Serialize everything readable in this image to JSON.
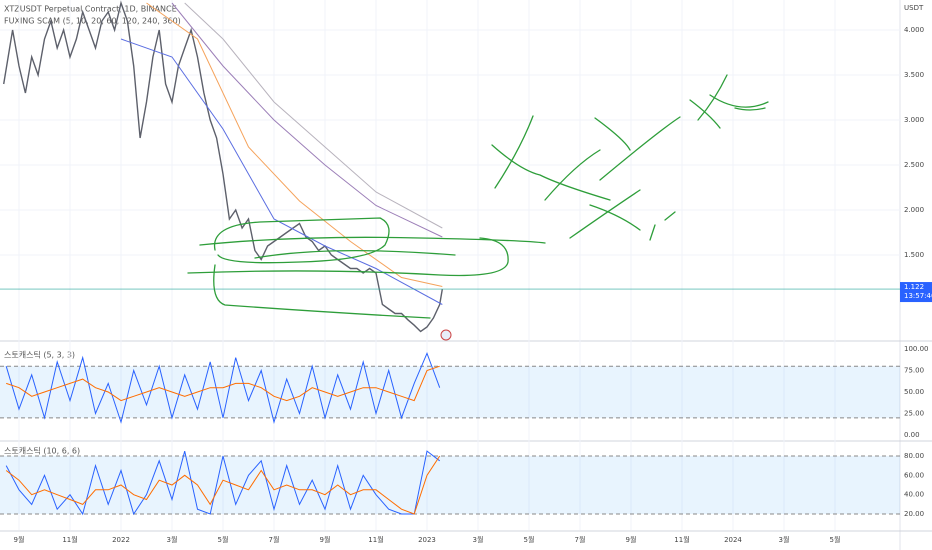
{
  "chart_data": [
    {
      "type": "line",
      "title": "XTZUSDT Perpetual Contract, 1D, BINANCE",
      "subtitle": "FUXING SCAM (5, 10, 20, 60, 120, 240, 360)",
      "y_unit": "USDT",
      "x": [
        -0.6,
        -0.25,
        0,
        0.25,
        0.5,
        0.75,
        1,
        1.25,
        1.5,
        1.75,
        2,
        2.25,
        2.5,
        2.75,
        3,
        3.25,
        3.5,
        3.75,
        4,
        4.25,
        4.5,
        4.75,
        5,
        5.25,
        5.5,
        5.75,
        6,
        6.25,
        6.5,
        6.75,
        7,
        7.25,
        7.5,
        7.75,
        8,
        8.25,
        8.5,
        8.75,
        9,
        9.25,
        9.5,
        9.75,
        10,
        10.25,
        10.5,
        10.75,
        11,
        11.25,
        11.5,
        11.75,
        12,
        12.25,
        12.5,
        12.75,
        13,
        13.25,
        13.5,
        13.75,
        14,
        14.25,
        14.5,
        14.75,
        15,
        15.25,
        15.5,
        15.75,
        16,
        16.25,
        16.5,
        16.6
      ],
      "series": [
        {
          "color": "#5d606b",
          "values": [
            3.4,
            4.0,
            3.6,
            3.3,
            3.7,
            3.5,
            3.9,
            4.1,
            3.8,
            4.0,
            3.7,
            3.9,
            4.2,
            4.0,
            3.8,
            4.1,
            4.2,
            4.0,
            4.3,
            4.1,
            3.6,
            2.8,
            3.2,
            3.7,
            4.0,
            3.4,
            3.2,
            3.6,
            3.8,
            4.0,
            3.7,
            3.3,
            3.0,
            2.8,
            2.4,
            1.9,
            2.0,
            1.8,
            1.9,
            1.55,
            1.45,
            1.6,
            1.65,
            1.7,
            1.75,
            1.8,
            1.85,
            1.7,
            1.65,
            1.55,
            1.6,
            1.5,
            1.45,
            1.4,
            1.35,
            1.35,
            1.3,
            1.35,
            1.3,
            0.95,
            0.9,
            0.85,
            0.85,
            0.78,
            0.72,
            0.65,
            0.7,
            0.8,
            0.95,
            1.12
          ]
        },
        {
          "color": "#5b6ee1",
          "x": [
            4,
            6,
            8,
            10,
            12,
            14,
            16.6
          ],
          "values": [
            3.9,
            3.7,
            2.9,
            1.9,
            1.6,
            1.35,
            0.95
          ]
        },
        {
          "color": "#f5a35c",
          "x": [
            5,
            7,
            9,
            11,
            13,
            15,
            16.6
          ],
          "values": [
            4.3,
            3.9,
            2.7,
            2.1,
            1.65,
            1.25,
            1.15
          ]
        },
        {
          "color": "#9c7fb8",
          "x": [
            6,
            8,
            10,
            12,
            14,
            16.6
          ],
          "values": [
            4.3,
            3.6,
            3.0,
            2.5,
            2.05,
            1.7
          ]
        },
        {
          "color": "#b8b3bd",
          "x": [
            6.5,
            8,
            10,
            12,
            14,
            16.6
          ],
          "values": [
            4.3,
            3.9,
            3.2,
            2.7,
            2.2,
            1.8
          ]
        }
      ],
      "ylim": [
        0.556,
        4.333
      ],
      "yticks": [
        {
          "value": 1.5,
          "label": "1.500"
        },
        {
          "value": 2,
          "label": "2.000"
        },
        {
          "value": 2.5,
          "label": "2.500"
        },
        {
          "value": 3,
          "label": "3.000"
        },
        {
          "value": 3.5,
          "label": "3.500"
        },
        {
          "value": 4,
          "label": "4.000"
        }
      ],
      "xlim": [
        -0.745,
        34.55
      ],
      "xticks": [
        {
          "value": 0,
          "label": "9월"
        },
        {
          "value": 2,
          "label": "11월"
        },
        {
          "value": 4,
          "label": "2022"
        },
        {
          "value": 6,
          "label": "3월"
        },
        {
          "value": 8,
          "label": "5월"
        },
        {
          "value": 10,
          "label": "7월"
        },
        {
          "value": 12,
          "label": "9월"
        },
        {
          "value": 14,
          "label": "11월"
        },
        {
          "value": 16,
          "label": "2023"
        },
        {
          "value": 18,
          "label": "3월"
        },
        {
          "value": 20,
          "label": "5월"
        },
        {
          "value": 22,
          "label": "7월"
        },
        {
          "value": 24,
          "label": "9월"
        },
        {
          "value": 26,
          "label": "11월"
        },
        {
          "value": 28,
          "label": "2024"
        },
        {
          "value": 30,
          "label": "3월"
        },
        {
          "value": 32,
          "label": "5월"
        }
      ],
      "last_price": {
        "value": 1.122,
        "label": "1.122"
      },
      "last_time": "13:57:46"
    },
    {
      "type": "line",
      "title": "스토캐스틱 (5, 3, 3)",
      "x": [
        -0.5,
        0,
        0.5,
        1,
        1.5,
        2,
        2.5,
        3,
        3.5,
        4,
        4.5,
        5,
        5.5,
        6,
        6.5,
        7,
        7.5,
        8,
        8.5,
        9,
        9.5,
        10,
        10.5,
        11,
        11.5,
        12,
        12.5,
        13,
        13.5,
        14,
        14.5,
        15,
        15.5,
        16,
        16.5
      ],
      "series": [
        {
          "color": "#2962ff",
          "values": [
            80,
            30,
            70,
            20,
            85,
            40,
            90,
            25,
            60,
            15,
            75,
            35,
            80,
            20,
            70,
            30,
            85,
            20,
            90,
            40,
            75,
            15,
            65,
            25,
            80,
            20,
            70,
            30,
            85,
            25,
            75,
            20,
            60,
            95,
            55
          ]
        },
        {
          "color": "#ff6d00",
          "values": [
            60,
            55,
            45,
            50,
            55,
            60,
            65,
            55,
            50,
            40,
            45,
            50,
            55,
            50,
            45,
            50,
            55,
            55,
            60,
            60,
            55,
            45,
            40,
            45,
            55,
            50,
            45,
            50,
            55,
            55,
            50,
            45,
            40,
            75,
            80
          ]
        }
      ],
      "band": [
        20,
        80
      ],
      "ylim": [
        -5.8,
        107
      ],
      "yticks": [
        {
          "value": 0,
          "label": "0.00"
        },
        {
          "value": 25,
          "label": "25.00"
        },
        {
          "value": 50,
          "label": "50.00"
        },
        {
          "value": 75,
          "label": "75.00"
        },
        {
          "value": 100,
          "label": "100.00"
        }
      ]
    },
    {
      "type": "line",
      "title": "스토캐스틱 (10, 6, 6)",
      "x": [
        -0.5,
        0,
        0.5,
        1,
        1.5,
        2,
        2.5,
        3,
        3.5,
        4,
        4.5,
        5,
        5.5,
        6,
        6.5,
        7,
        7.5,
        8,
        8.5,
        9,
        9.5,
        10,
        10.5,
        11,
        11.5,
        12,
        12.5,
        13,
        13.5,
        14,
        14.5,
        15,
        15.5,
        16,
        16.5
      ],
      "series": [
        {
          "color": "#2962ff",
          "values": [
            70,
            45,
            30,
            60,
            25,
            40,
            20,
            70,
            30,
            65,
            20,
            40,
            75,
            35,
            85,
            25,
            20,
            80,
            30,
            60,
            75,
            25,
            70,
            30,
            55,
            25,
            70,
            25,
            60,
            40,
            25,
            20,
            20,
            85,
            75
          ]
        },
        {
          "color": "#ff6d00",
          "values": [
            65,
            55,
            40,
            45,
            40,
            35,
            30,
            45,
            45,
            50,
            40,
            35,
            55,
            50,
            60,
            50,
            30,
            55,
            50,
            45,
            65,
            45,
            50,
            45,
            45,
            40,
            50,
            40,
            45,
            45,
            35,
            25,
            20,
            60,
            80
          ]
        }
      ],
      "band": [
        20,
        80
      ],
      "ylim": [
        3.5,
        93.4
      ],
      "yticks": [
        {
          "value": 20,
          "label": "20.00"
        },
        {
          "value": 40,
          "label": "40.00"
        },
        {
          "value": 60,
          "label": "60.00"
        },
        {
          "value": 80,
          "label": "80.00"
        }
      ]
    }
  ]
}
